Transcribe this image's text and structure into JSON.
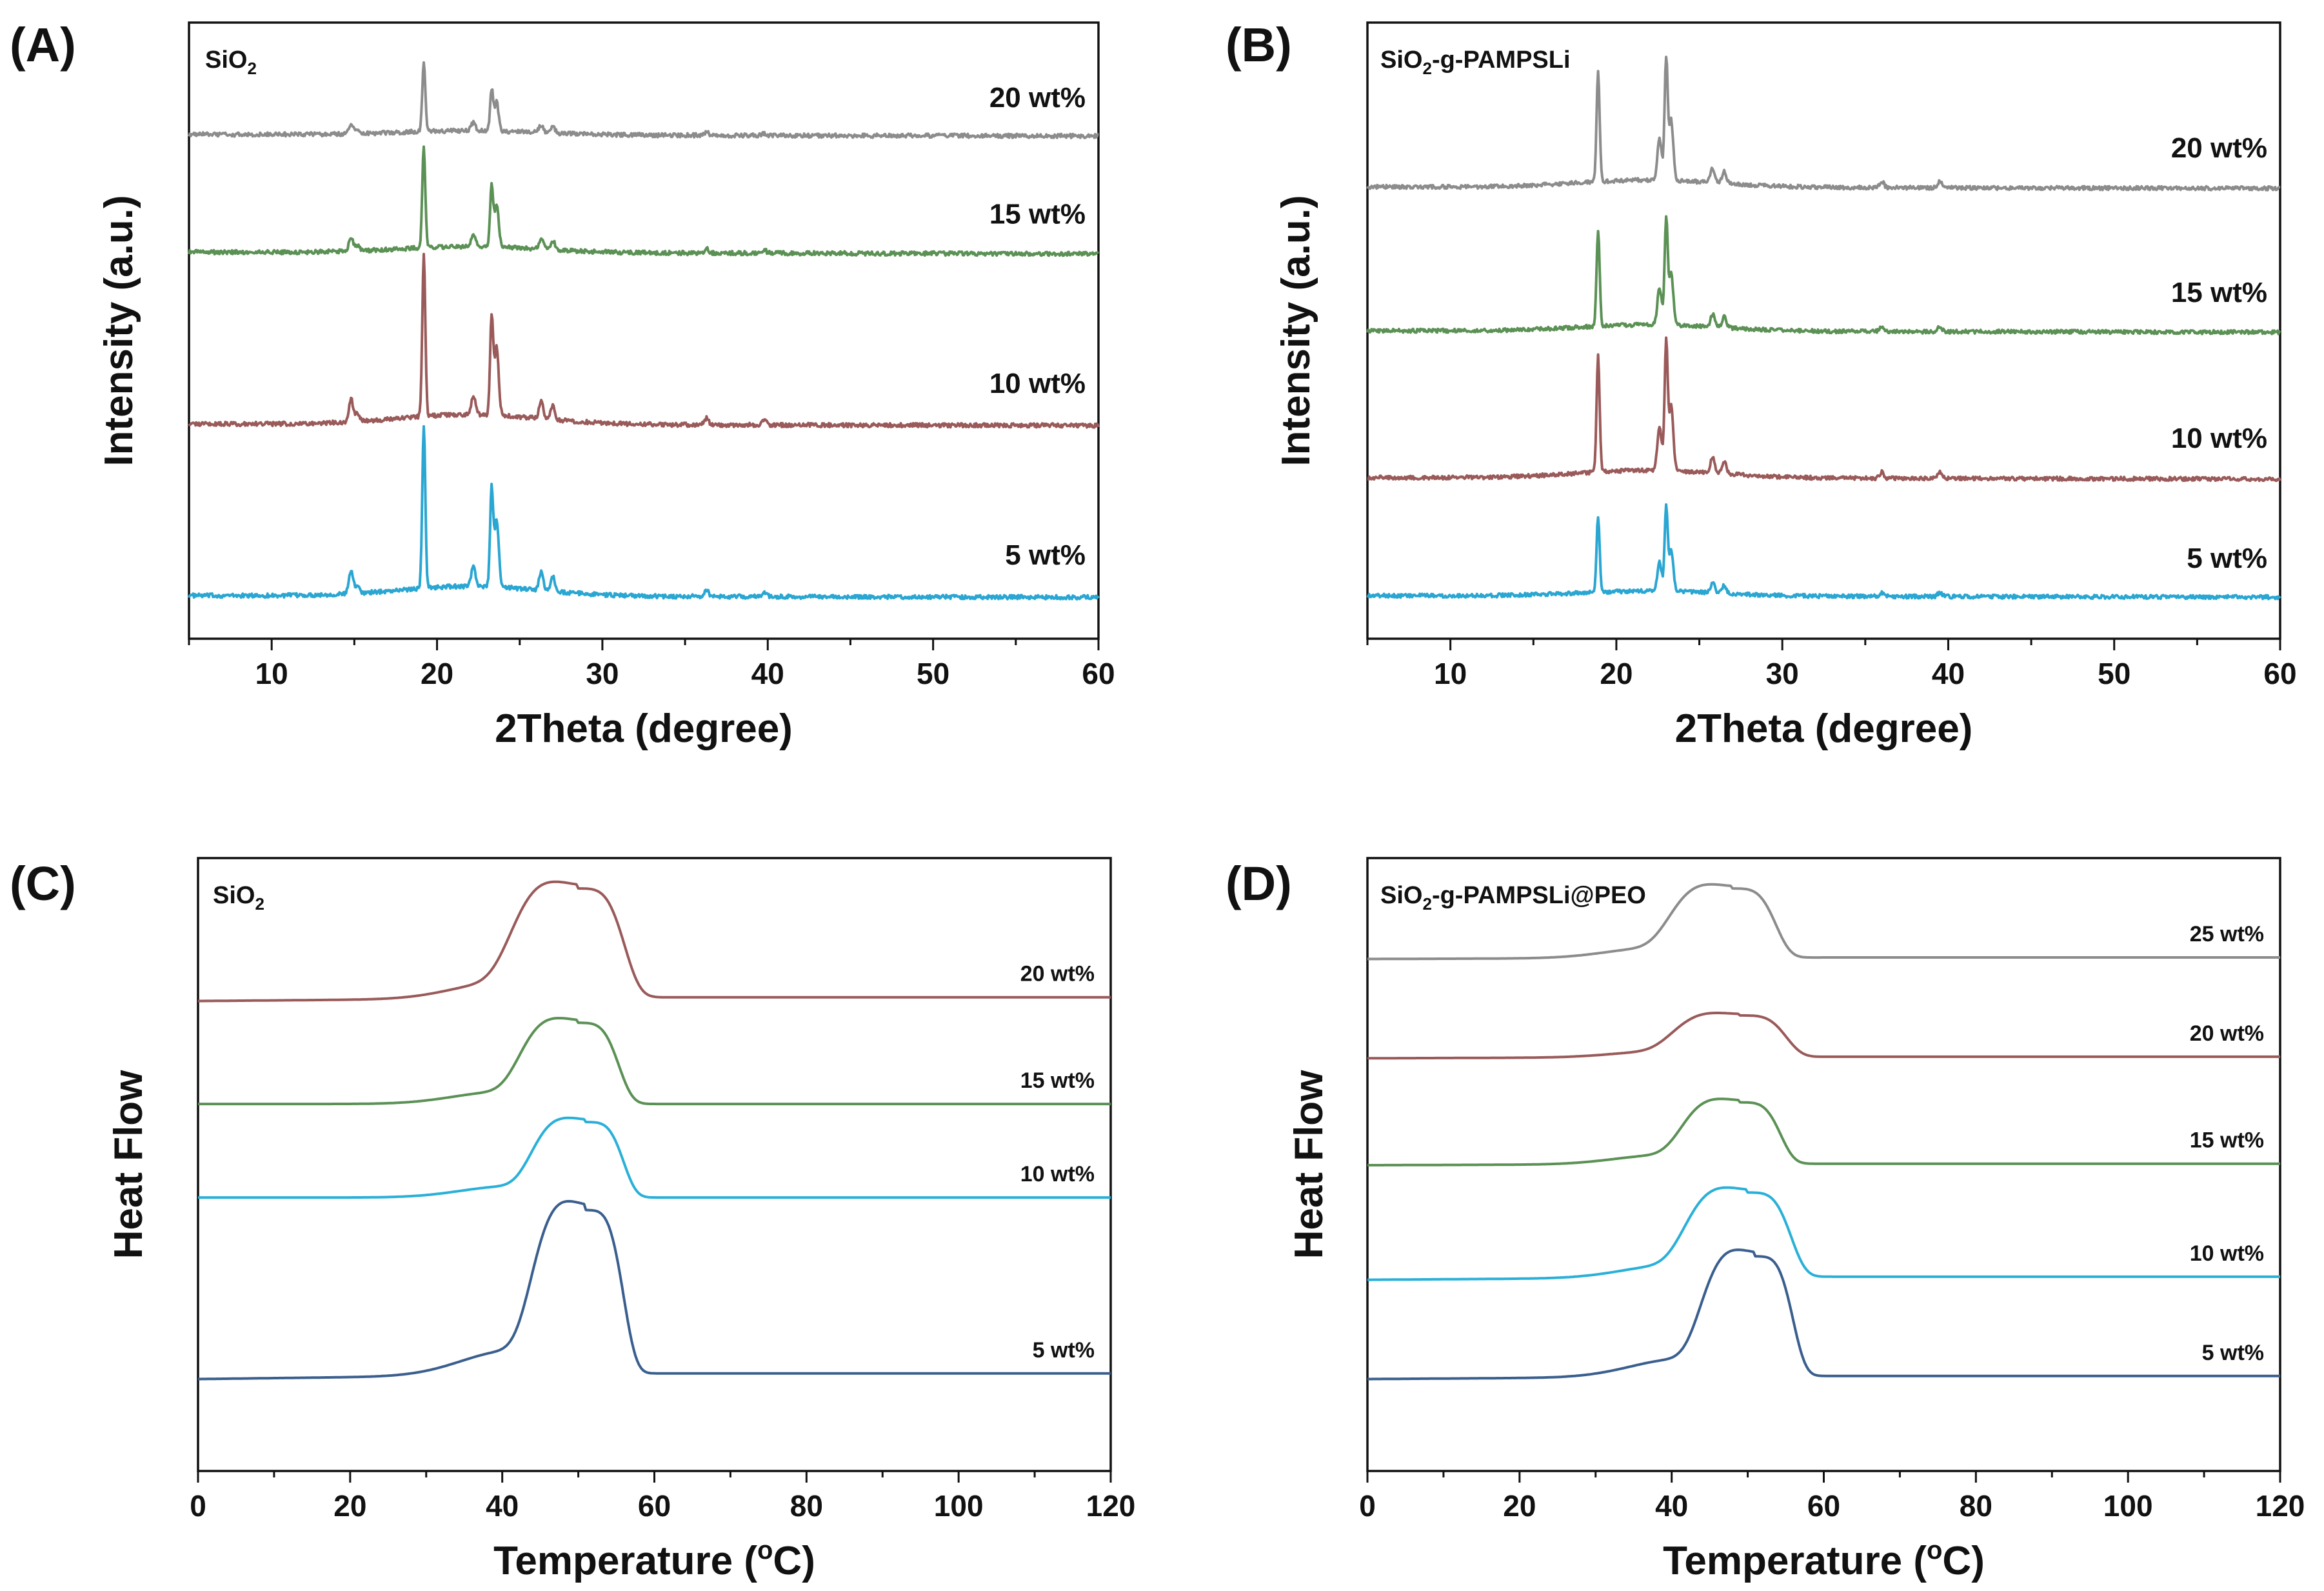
{
  "colors": {
    "5": "#2aa6d2",
    "10": "#9a5a5a",
    "15": "#5b9155",
    "20": "#8c8c8c",
    "dsc5": "#3a5f8e",
    "dsc10": "#2ab0d8",
    "dsc15": "#5b9155",
    "dsc20": "#9a5a5a",
    "dsc25": "#8c8c8c"
  },
  "chart_data": [
    {
      "panel": "(A)",
      "type": "line",
      "title": "SiO2",
      "sample_label": {
        "main": "SiO",
        "sub": "2",
        "rest": ""
      },
      "xlabel": "2Theta (degree)",
      "ylabel": "Intensity (a.u.)",
      "xlim": [
        5,
        60
      ],
      "xticks": [
        10,
        20,
        30,
        40,
        50,
        60
      ],
      "peaks": [
        [
          14.8,
          0.14
        ],
        [
          15.2,
          0.05
        ],
        [
          19.2,
          1.0
        ],
        [
          22.2,
          0.12
        ],
        [
          23.3,
          0.6
        ],
        [
          23.6,
          0.42
        ],
        [
          26.3,
          0.11
        ],
        [
          27.0,
          0.09
        ],
        [
          36.3,
          0.04
        ],
        [
          39.8,
          0.03
        ]
      ],
      "series": [
        {
          "name": "5 wt%",
          "offset": 0,
          "scale": 1.0,
          "color_key": "5"
        },
        {
          "name": "10 wt%",
          "offset": 1.05,
          "scale": 1.0,
          "color_key": "10"
        },
        {
          "name": "15 wt%",
          "offset": 2.1,
          "scale": 0.62,
          "color_key": "15"
        },
        {
          "name": "20 wt%",
          "offset": 2.82,
          "scale": 0.42,
          "color_key": "20"
        }
      ]
    },
    {
      "panel": "(B)",
      "type": "line",
      "title": "SiO2-g-PAMPSLi",
      "sample_label": {
        "main": "SiO",
        "sub": "2",
        "rest": "-g-PAMPSLi"
      },
      "xlabel": "2Theta (degree)",
      "ylabel": "Intensity (a.u.)",
      "xlim": [
        5,
        60
      ],
      "xticks": [
        10,
        20,
        30,
        40,
        50,
        60
      ],
      "peaks": [
        [
          18.9,
          0.9
        ],
        [
          22.6,
          0.35
        ],
        [
          23.0,
          1.0
        ],
        [
          23.3,
          0.5
        ],
        [
          25.8,
          0.12
        ],
        [
          26.5,
          0.1
        ],
        [
          36.0,
          0.05
        ],
        [
          39.5,
          0.05
        ]
      ],
      "series": [
        {
          "name": "5 wt%",
          "offset": 0,
          "scale": 0.55,
          "color_key": "5"
        },
        {
          "name": "10 wt%",
          "offset": 0.78,
          "scale": 0.85,
          "color_key": "10"
        },
        {
          "name": "15 wt%",
          "offset": 1.75,
          "scale": 0.7,
          "color_key": "15"
        },
        {
          "name": "20 wt%",
          "offset": 2.7,
          "scale": 0.8,
          "color_key": "20"
        }
      ]
    },
    {
      "panel": "(C)",
      "type": "line",
      "title": "SiO2",
      "sample_label": {
        "main": "SiO",
        "sub": "2",
        "rest": ""
      },
      "xlabel": "Temperature (°C)",
      "ylabel": "Heat Flow",
      "xlim": [
        0,
        120
      ],
      "xticks": [
        0,
        20,
        40,
        60,
        80,
        100,
        120
      ],
      "series": [
        {
          "name": "5 wt%",
          "baseline": 0,
          "drift": 0.03,
          "amp": 0.87,
          "center": 51,
          "width": 6.5,
          "color_key": "dsc5"
        },
        {
          "name": "10 wt%",
          "baseline": 0.97,
          "drift": 0.0,
          "amp": 0.4,
          "center": 51,
          "width": 6.5,
          "color_key": "dsc10"
        },
        {
          "name": "15 wt%",
          "baseline": 1.47,
          "drift": 0.0,
          "amp": 0.43,
          "center": 50,
          "width": 7,
          "color_key": "dsc15"
        },
        {
          "name": "20 wt%",
          "baseline": 2.02,
          "drift": 0.02,
          "amp": 0.58,
          "center": 50,
          "width": 8,
          "color_key": "dsc20"
        }
      ]
    },
    {
      "panel": "(D)",
      "type": "line",
      "title": "SiO2-g-PAMPSLi@PEO",
      "sample_label": {
        "main": "SiO",
        "sub": "2",
        "rest": "-g-PAMPSLi@PEO"
      },
      "xlabel": "Temperature (°C)",
      "ylabel": "Heat Flow",
      "xlim": [
        0,
        120
      ],
      "xticks": [
        0,
        20,
        40,
        60,
        80,
        100,
        120
      ],
      "series": [
        {
          "name": "5 wt%",
          "baseline": 0,
          "drift": 0.02,
          "amp": 0.78,
          "center": 51,
          "width": 6.5,
          "color_key": "dsc5"
        },
        {
          "name": "10 wt%",
          "baseline": 0.65,
          "drift": 0.02,
          "amp": 0.55,
          "center": 50,
          "width": 7.5,
          "color_key": "dsc10"
        },
        {
          "name": "15 wt%",
          "baseline": 1.4,
          "drift": 0.01,
          "amp": 0.4,
          "center": 49,
          "width": 7,
          "color_key": "dsc15"
        },
        {
          "name": "20 wt%",
          "baseline": 2.1,
          "drift": 0.01,
          "amp": 0.27,
          "center": 49,
          "width": 8,
          "color_key": "dsc20"
        },
        {
          "name": "25 wt%",
          "baseline": 2.75,
          "drift": 0.01,
          "amp": 0.45,
          "center": 48,
          "width": 7.5,
          "color_key": "dsc25"
        }
      ]
    }
  ]
}
